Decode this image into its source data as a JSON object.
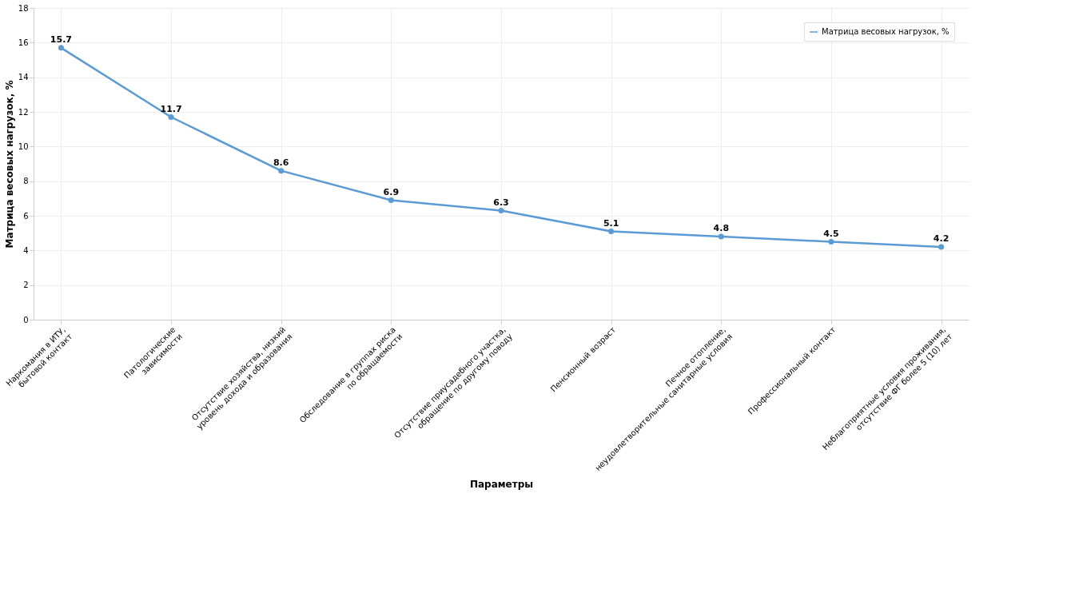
{
  "chart_data": {
    "type": "line",
    "xlabel": "Параметры",
    "ylabel": "Матрица весовых нагрузок, %",
    "categories": [
      "Наркомания в ИТУ,\nбытовой контакт",
      "Патологические\nзависимости",
      "Отсутствие хозяйства, низкий\nуровень дохода и образования",
      "Обследование в группах риска\nпо обращаемости",
      "Отсутствие приусадебного участка,\nобращение по другому поводу",
      "Пенсионный возраст",
      "Печное отопление,\nнеудовлетворительные санитарные условия",
      "Профессиональный контакт",
      "Неблагоприятные условия проживания,\nотсутствие ФГ более 5 (10) лет"
    ],
    "series": [
      {
        "name": "Матрица весовых нагрузок, %",
        "color": "#5b9bd5",
        "values": [
          15.7,
          11.7,
          8.6,
          6.9,
          6.3,
          5.1,
          4.8,
          4.5,
          4.2
        ]
      }
    ],
    "ylim": [
      0,
      18
    ],
    "yticks": [
      0,
      2,
      4,
      6,
      8,
      10,
      12,
      14,
      16,
      18
    ],
    "grid": true,
    "legend": "top right",
    "marker": "circle",
    "line_style": "solid",
    "data_labels": true
  }
}
